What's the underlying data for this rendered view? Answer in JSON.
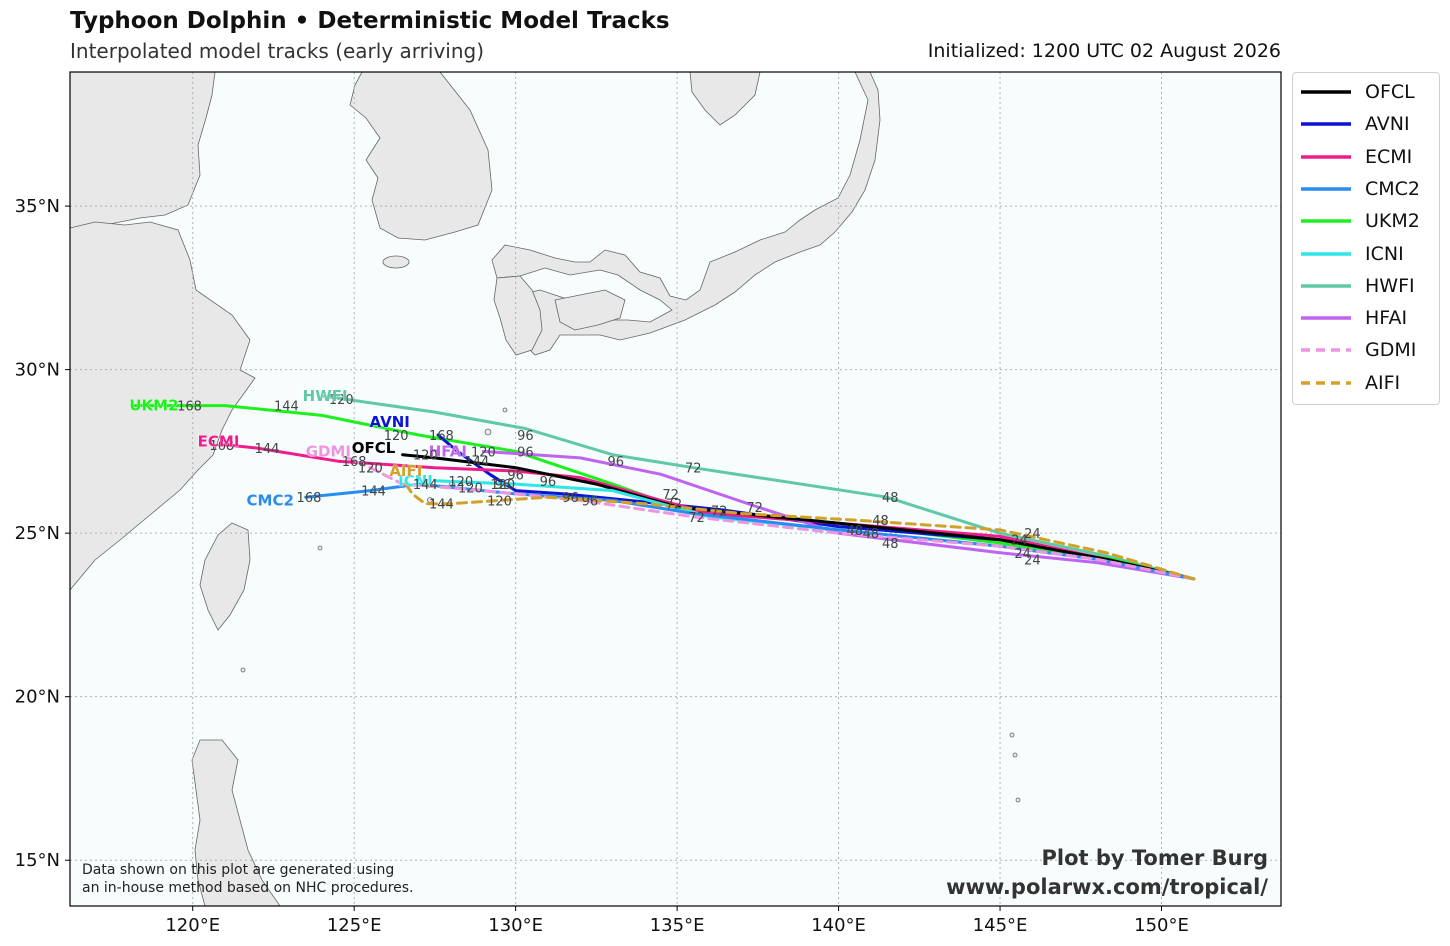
{
  "title": "Typhoon Dolphin • Deterministic Model Tracks",
  "subtitle": "Interpolated model tracks (early arriving)",
  "initialized": "Initialized: 1200 UTC 02 August 2026",
  "note_line1": "Data shown on this plot are generated using",
  "note_line2": "an in-house method based on NHC procedures.",
  "credit_line1": "Plot by Tomer Burg",
  "credit_line2": "www.polarwx.com/tropical/",
  "colors": {
    "ocean": "#f7fcfd",
    "land": "#e8e8e8",
    "coast": "#666666",
    "grid": "#aab2b8"
  },
  "map_extent": {
    "lon_min": 116.2,
    "lon_max": 153.7,
    "lat_min": 13.6,
    "lat_max": 39.1
  },
  "x_ticks": [
    {
      "lon": 120,
      "label": "120°E"
    },
    {
      "lon": 125,
      "label": "125°E"
    },
    {
      "lon": 130,
      "label": "130°E"
    },
    {
      "lon": 135,
      "label": "135°E"
    },
    {
      "lon": 140,
      "label": "140°E"
    },
    {
      "lon": 145,
      "label": "145°E"
    },
    {
      "lon": 150,
      "label": "150°E"
    }
  ],
  "y_ticks": [
    {
      "lat": 15,
      "label": "15°N"
    },
    {
      "lat": 20,
      "label": "20°N"
    },
    {
      "lat": 25,
      "label": "25°N"
    },
    {
      "lat": 30,
      "label": "30°N"
    },
    {
      "lat": 35,
      "label": "35°N"
    }
  ],
  "legend": [
    {
      "name": "OFCL",
      "color": "#000000",
      "dash": false
    },
    {
      "name": "AVNI",
      "color": "#0a14d2",
      "dash": false
    },
    {
      "name": "ECMI",
      "color": "#ef1d8c",
      "dash": false
    },
    {
      "name": "CMC2",
      "color": "#2a8cf0",
      "dash": false
    },
    {
      "name": "UKM2",
      "color": "#1ef01e",
      "dash": false
    },
    {
      "name": "ICNI",
      "color": "#2ee6e6",
      "dash": false
    },
    {
      "name": "HWFI",
      "color": "#5fc8a5",
      "dash": false
    },
    {
      "name": "HFAI",
      "color": "#c063f0",
      "dash": false
    },
    {
      "name": "GDMI",
      "color": "#ee94e0",
      "dash": true
    },
    {
      "name": "AIFI",
      "color": "#d1a12a",
      "dash": true
    }
  ],
  "tracks": [
    {
      "name": "HWFI",
      "color": "#5fc8a5",
      "dash": false,
      "end_label_color": "#5fc8a5",
      "points": [
        [
          151.0,
          23.6
        ],
        [
          148.3,
          24.3
        ],
        [
          145.0,
          25.0
        ],
        [
          141.5,
          26.1
        ],
        [
          135.5,
          27.0
        ],
        [
          133.0,
          27.4
        ],
        [
          130.3,
          28.2
        ],
        [
          127.5,
          28.7
        ],
        [
          124.0,
          29.2
        ]
      ],
      "hour_labels": [
        {
          "t": "48",
          "lon": 141.6,
          "lat": 26.1
        },
        {
          "t": "72",
          "lon": 135.5,
          "lat": 27.0
        },
        {
          "t": "96",
          "lon": 130.3,
          "lat": 28.0
        },
        {
          "t": "120",
          "lon": 124.6,
          "lat": 29.1
        }
      ],
      "name_pos": [
        124.1,
        29.2
      ]
    },
    {
      "name": "UKM2",
      "color": "#1ef01e",
      "dash": false,
      "end_label_color": "#1ef01e",
      "points": [
        [
          151.0,
          23.6
        ],
        [
          148.5,
          24.2
        ],
        [
          145.0,
          24.7
        ],
        [
          140.0,
          25.3
        ],
        [
          135.0,
          25.8
        ],
        [
          133.0,
          26.5
        ],
        [
          130.0,
          27.5
        ],
        [
          127.0,
          28.0
        ],
        [
          124.0,
          28.6
        ],
        [
          121.0,
          28.9
        ],
        [
          118.2,
          28.9
        ]
      ],
      "hour_labels": [
        {
          "t": "96",
          "lon": 130.3,
          "lat": 27.5
        },
        {
          "t": "144",
          "lon": 122.9,
          "lat": 28.9
        },
        {
          "t": "168",
          "lon": 119.9,
          "lat": 28.9
        }
      ],
      "name_pos": [
        118.8,
        28.9
      ]
    },
    {
      "name": "AVNI",
      "color": "#0a14d2",
      "dash": false,
      "end_label_color": "#0a14d2",
      "points": [
        [
          151.0,
          23.6
        ],
        [
          148.3,
          24.2
        ],
        [
          145.0,
          24.8
        ],
        [
          140.0,
          25.2
        ],
        [
          136.5,
          25.7
        ],
        [
          133.5,
          26.0
        ],
        [
          131.5,
          26.2
        ],
        [
          130.0,
          26.3
        ],
        [
          129.2,
          26.8
        ],
        [
          128.2,
          27.5
        ],
        [
          127.6,
          28.0
        ]
      ],
      "hour_labels": [
        {
          "t": "168",
          "lon": 127.7,
          "lat": 28.0
        },
        {
          "t": "120",
          "lon": 126.3,
          "lat": 28.0
        }
      ],
      "name_pos": [
        126.1,
        28.4
      ]
    },
    {
      "name": "ECMI",
      "color": "#ef1d8c",
      "dash": false,
      "end_label_color": "#ef1d8c",
      "points": [
        [
          151.0,
          23.6
        ],
        [
          148.3,
          24.2
        ],
        [
          145.0,
          24.9
        ],
        [
          140.0,
          25.3
        ],
        [
          136.0,
          25.6
        ],
        [
          134.5,
          26.0
        ],
        [
          132.0,
          26.7
        ],
        [
          130.0,
          26.9
        ],
        [
          127.5,
          27.0
        ],
        [
          124.5,
          27.2
        ],
        [
          122.0,
          27.6
        ],
        [
          121.0,
          27.7
        ]
      ],
      "hour_labels": [
        {
          "t": "144",
          "lon": 122.3,
          "lat": 27.6
        },
        {
          "t": "168",
          "lon": 120.9,
          "lat": 27.7
        }
      ],
      "name_pos": [
        120.8,
        27.8
      ]
    },
    {
      "name": "HFAI",
      "color": "#c063f0",
      "dash": false,
      "end_label_color": "#c063f0",
      "points": [
        [
          151.0,
          23.6
        ],
        [
          148.0,
          24.1
        ],
        [
          145.0,
          24.4
        ],
        [
          140.0,
          25.0
        ],
        [
          137.5,
          25.8
        ],
        [
          134.5,
          26.8
        ],
        [
          132.0,
          27.3
        ],
        [
          129.0,
          27.5
        ]
      ],
      "hour_labels": [
        {
          "t": "48",
          "lon": 141.6,
          "lat": 24.7
        },
        {
          "t": "72",
          "lon": 137.4,
          "lat": 25.8
        },
        {
          "t": "96",
          "lon": 133.1,
          "lat": 27.2
        },
        {
          "t": "120",
          "lon": 129.0,
          "lat": 27.5
        }
      ],
      "name_pos": [
        127.9,
        27.5
      ]
    },
    {
      "name": "OFCL",
      "color": "#000000",
      "dash": false,
      "end_label_color": "#000000",
      "points": [
        [
          151.0,
          23.6
        ],
        [
          148.3,
          24.2
        ],
        [
          145.0,
          24.8
        ],
        [
          140.0,
          25.3
        ],
        [
          135.0,
          25.8
        ],
        [
          132.5,
          26.5
        ],
        [
          130.0,
          27.0
        ],
        [
          127.5,
          27.3
        ],
        [
          126.5,
          27.4
        ]
      ],
      "hour_labels": [
        {
          "t": "120",
          "lon": 127.2,
          "lat": 27.4
        }
      ],
      "name_pos": [
        125.6,
        27.6
      ]
    },
    {
      "name": "ICNI",
      "color": "#2ee6e6",
      "dash": false,
      "end_label_color": "#2ee6e6",
      "points": [
        [
          151.0,
          23.6
        ],
        [
          148.0,
          24.2
        ],
        [
          145.0,
          24.6
        ],
        [
          140.0,
          25.1
        ],
        [
          136.0,
          25.5
        ],
        [
          133.0,
          26.3
        ],
        [
          130.0,
          26.5
        ],
        [
          127.5,
          26.6
        ]
      ],
      "hour_labels": [
        {
          "t": "120",
          "lon": 128.6,
          "lat": 26.4
        }
      ],
      "name_pos": [
        126.9,
        26.6
      ]
    },
    {
      "name": "CMC2",
      "color": "#2a8cf0",
      "dash": false,
      "end_label_color": "#2a8cf0",
      "points": [
        [
          151.0,
          23.6
        ],
        [
          148.0,
          24.2
        ],
        [
          145.0,
          24.6
        ],
        [
          140.0,
          25.1
        ],
        [
          135.5,
          25.6
        ],
        [
          133.0,
          26.0
        ],
        [
          130.0,
          26.2
        ],
        [
          127.0,
          26.5
        ],
        [
          125.5,
          26.3
        ],
        [
          123.5,
          26.1
        ]
      ],
      "hour_labels": [
        {
          "t": "96",
          "lon": 132.3,
          "lat": 26.0
        },
        {
          "t": "144",
          "lon": 125.6,
          "lat": 26.3
        },
        {
          "t": "168",
          "lon": 123.6,
          "lat": 26.1
        }
      ],
      "name_pos": [
        122.4,
        26.0
      ]
    },
    {
      "name": "GDMI",
      "color": "#ee94e0",
      "dash": true,
      "end_label_color": "#ee94e0",
      "points": [
        [
          151.0,
          23.6
        ],
        [
          148.0,
          24.2
        ],
        [
          145.0,
          24.6
        ],
        [
          140.0,
          25.0
        ],
        [
          135.5,
          25.5
        ],
        [
          132.0,
          26.0
        ],
        [
          129.0,
          26.3
        ],
        [
          126.5,
          26.5
        ],
        [
          125.5,
          27.0
        ],
        [
          124.8,
          27.3
        ]
      ],
      "hour_labels": [
        {
          "t": "168",
          "lon": 125.0,
          "lat": 27.2
        },
        {
          "t": "72",
          "lon": 135.6,
          "lat": 25.5
        }
      ],
      "name_pos": [
        124.2,
        27.5
      ]
    },
    {
      "name": "AIFI",
      "color": "#d1a12a",
      "dash": true,
      "end_label_color": "#d1a12a",
      "points": [
        [
          151.0,
          23.6
        ],
        [
          148.3,
          24.4
        ],
        [
          145.0,
          25.1
        ],
        [
          140.5,
          25.4
        ],
        [
          137.0,
          25.6
        ],
        [
          134.0,
          25.9
        ],
        [
          131.0,
          26.1
        ],
        [
          128.0,
          25.9
        ],
        [
          127.2,
          25.9
        ],
        [
          126.8,
          26.2
        ],
        [
          126.6,
          26.5
        ]
      ],
      "hour_labels": [
        {
          "t": "120",
          "lon": 129.5,
          "lat": 26.0
        },
        {
          "t": "144",
          "lon": 127.7,
          "lat": 25.9
        },
        {
          "t": "24",
          "lon": 146.0,
          "lat": 25.0
        }
      ],
      "name_pos": [
        126.6,
        26.9
      ]
    }
  ],
  "extra_hour_labels": [
    {
      "t": "24",
      "lon": 145.6,
      "lat": 24.8
    },
    {
      "t": "24",
      "lon": 145.7,
      "lat": 24.4
    },
    {
      "t": "24",
      "lon": 146.0,
      "lat": 24.2
    },
    {
      "t": "48",
      "lon": 141.3,
      "lat": 25.4
    },
    {
      "t": "48",
      "lon": 140.5,
      "lat": 25.1
    },
    {
      "t": "48",
      "lon": 141.0,
      "lat": 25.0
    },
    {
      "t": "72",
      "lon": 136.3,
      "lat": 25.7
    },
    {
      "t": "72",
      "lon": 134.9,
      "lat": 25.9
    },
    {
      "t": "72",
      "lon": 134.8,
      "lat": 26.2
    },
    {
      "t": "96",
      "lon": 131.7,
      "lat": 26.1
    },
    {
      "t": "96",
      "lon": 130.0,
      "lat": 26.8
    },
    {
      "t": "96",
      "lon": 131.0,
      "lat": 26.6
    },
    {
      "t": "120",
      "lon": 128.3,
      "lat": 26.6
    },
    {
      "t": "144",
      "lon": 128.8,
      "lat": 27.2
    },
    {
      "t": "120",
      "lon": 125.5,
      "lat": 27.0
    },
    {
      "t": "120",
      "lon": 129.6,
      "lat": 26.5
    },
    {
      "t": "144",
      "lon": 127.2,
      "lat": 26.5
    },
    {
      "t": "96",
      "lon": 129.6,
      "lat": 26.5
    }
  ]
}
